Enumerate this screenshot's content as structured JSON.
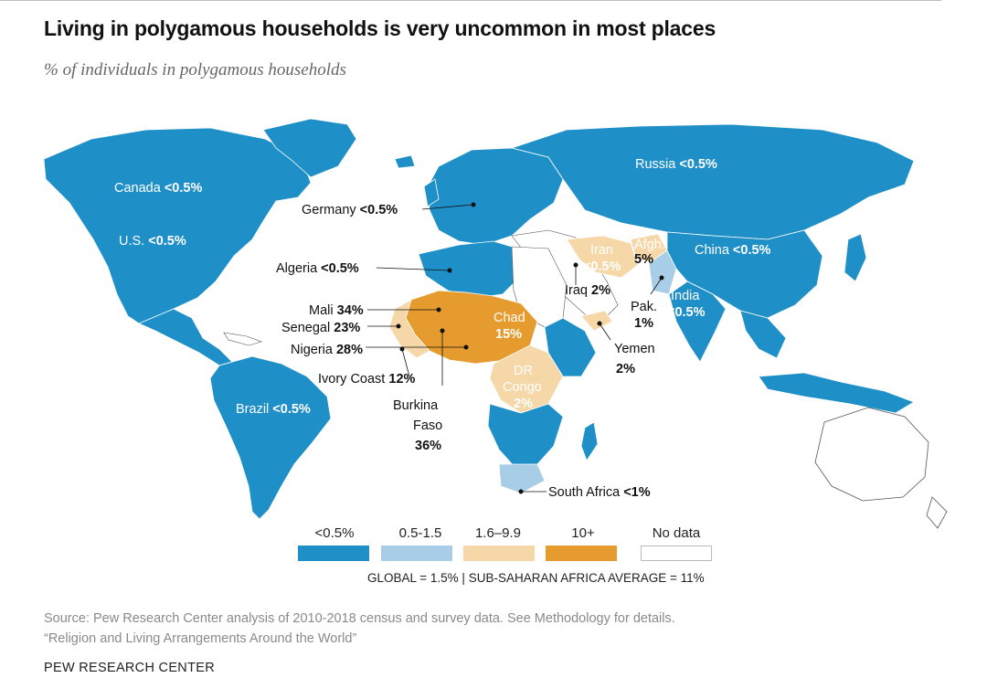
{
  "title": "Living in polygamous households is very uncommon in most places",
  "subtitle": "% of individuals in polygamous households",
  "colors": {
    "lt05": "#1f8fc8",
    "r05_15": "#a8cde6",
    "r16_99": "#f6d7a7",
    "r10plus": "#e69b2f",
    "nodata": "#ffffff",
    "border": "#ffffff",
    "label_white": "#ffffff",
    "label_dark": "#111111"
  },
  "labels": {
    "canada": {
      "name": "Canada",
      "value": "<0.5%"
    },
    "us": {
      "name": "U.S.",
      "value": "<0.5%"
    },
    "brazil": {
      "name": "Brazil",
      "value": "<0.5%"
    },
    "russia": {
      "name": "Russia",
      "value": "<0.5%"
    },
    "china": {
      "name": "China",
      "value": "<0.5%"
    },
    "germany": {
      "name": "Germany",
      "value": "<0.5%"
    },
    "algeria": {
      "name": "Algeria",
      "value": "<0.5%"
    },
    "mali": {
      "name": "Mali",
      "value": "34%"
    },
    "senegal": {
      "name": "Senegal",
      "value": "23%"
    },
    "nigeria": {
      "name": "Nigeria",
      "value": "28%"
    },
    "ivory_coast": {
      "name": "Ivory Coast",
      "value": "12%"
    },
    "burkina_1": "Burkina",
    "burkina_2": "Faso",
    "burkina_value": "36%",
    "chad": {
      "name": "Chad",
      "value": "15%"
    },
    "dr_1": "DR",
    "dr_2": "Congo",
    "dr_value": "2%",
    "iran": {
      "name": "Iran",
      "value": "<0.5%"
    },
    "afgh": {
      "name": "Afgh.",
      "value": "5%"
    },
    "iraq": {
      "name": "Iraq",
      "value": "2%"
    },
    "pak": {
      "name": "Pak.",
      "value": "1%"
    },
    "india": {
      "name": "India",
      "value": "<0.5%"
    },
    "yemen": {
      "name": "Yemen",
      "value": "2%"
    },
    "south_africa": {
      "name": "South Africa",
      "value": "<1%"
    }
  },
  "legend": {
    "items": [
      {
        "label": "<0.5%",
        "color": "#1f8fc8"
      },
      {
        "label": "0.5-1.5",
        "color": "#a8cde6"
      },
      {
        "label": "1.6–9.9",
        "color": "#f6d7a7"
      },
      {
        "label": "10+",
        "color": "#e69b2f"
      },
      {
        "label": "No data",
        "color": "#ffffff"
      }
    ],
    "note": "GLOBAL = 1.5%  |  SUB-SAHARAN AFRICA AVERAGE = 11%"
  },
  "source_line1": "Source: Pew Research Center analysis of 2010-2018 census and survey data. See Methodology for details.",
  "source_line2": "“Religion and Living Arrangements Around the World”",
  "brand": "PEW RESEARCH CENTER"
}
